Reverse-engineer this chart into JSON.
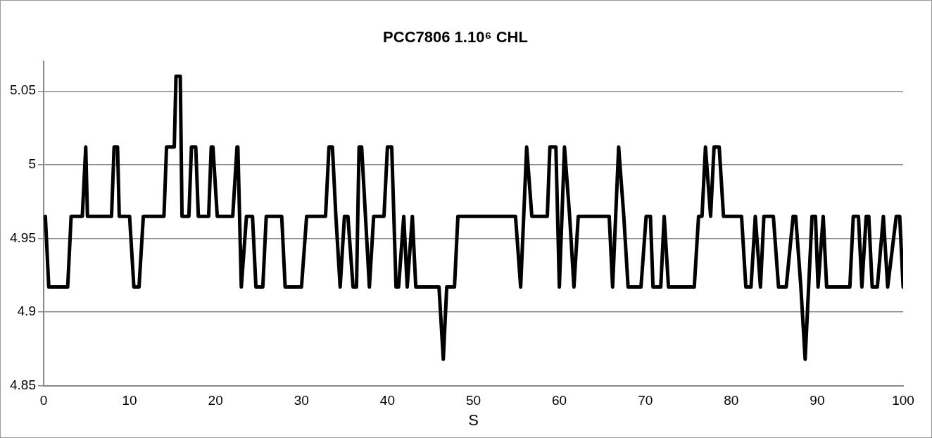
{
  "chart_data": {
    "type": "line",
    "title": "PCC7806 1.10⁶ CHL",
    "xlabel": "S",
    "xlim": [
      0,
      100
    ],
    "xticks": [
      0,
      10,
      20,
      30,
      40,
      50,
      60,
      70,
      80,
      90,
      100
    ],
    "ylim": [
      4.85,
      5.07
    ],
    "yticks": [
      4.85,
      4.9,
      4.95,
      5,
      5.05
    ],
    "grid": "y",
    "legend": false,
    "marker": "none",
    "line_style": "solid",
    "series": [
      {
        "color": "#000000",
        "x": [
          0.2,
          0.6,
          2.8,
          3.2,
          4.5,
          4.9,
          5.1,
          7.9,
          8.2,
          8.6,
          8.8,
          10.0,
          10.5,
          11.1,
          11.6,
          14.0,
          14.3,
          15.2,
          15.4,
          15.9,
          16.1,
          16.9,
          17.2,
          17.7,
          18.0,
          19.2,
          19.5,
          19.7,
          20.2,
          22.0,
          22.5,
          22.6,
          23.0,
          23.6,
          24.3,
          24.7,
          25.5,
          25.9,
          27.7,
          28.1,
          30.0,
          30.6,
          32.8,
          33.2,
          33.6,
          34.0,
          34.5,
          35.0,
          35.4,
          36.0,
          36.4,
          36.7,
          37.0,
          37.9,
          38.4,
          39.6,
          40.0,
          40.5,
          41.0,
          41.3,
          41.9,
          42.3,
          42.9,
          43.3,
          46.0,
          46.5,
          46.9,
          47.8,
          48.2,
          54.9,
          55.5,
          56.2,
          56.8,
          58.6,
          58.9,
          59.6,
          60.0,
          60.6,
          61.2,
          61.7,
          62.2,
          65.8,
          66.2,
          66.9,
          67.5,
          68.0,
          69.5,
          70.1,
          70.6,
          70.9,
          71.8,
          72.2,
          72.7,
          75.7,
          76.2,
          76.6,
          77.0,
          77.6,
          78.0,
          78.6,
          79.1,
          81.2,
          81.7,
          82.3,
          82.8,
          83.4,
          83.8,
          84.9,
          85.5,
          86.4,
          87.2,
          87.5,
          88.1,
          88.6,
          89.4,
          89.8,
          90.1,
          90.7,
          91.1,
          93.8,
          94.2,
          94.8,
          95.2,
          95.7,
          96.0,
          96.4,
          97.0,
          97.7,
          98.2,
          99.2,
          99.6,
          100.0
        ],
        "values": [
          4.965,
          4.917,
          4.917,
          4.965,
          4.965,
          5.012,
          4.965,
          4.965,
          5.012,
          5.012,
          4.965,
          4.965,
          4.917,
          4.917,
          4.965,
          4.965,
          5.012,
          5.012,
          5.06,
          5.06,
          4.965,
          4.965,
          5.012,
          5.012,
          4.965,
          4.965,
          5.012,
          5.012,
          4.965,
          4.965,
          5.012,
          5.012,
          4.917,
          4.965,
          4.965,
          4.917,
          4.917,
          4.965,
          4.965,
          4.917,
          4.917,
          4.965,
          4.965,
          5.012,
          5.012,
          4.965,
          4.917,
          4.965,
          4.965,
          4.917,
          4.917,
          5.012,
          5.012,
          4.917,
          4.965,
          4.965,
          5.012,
          5.012,
          4.917,
          4.917,
          4.965,
          4.917,
          4.965,
          4.917,
          4.917,
          4.868,
          4.917,
          4.917,
          4.965,
          4.965,
          4.917,
          5.012,
          4.965,
          4.965,
          5.012,
          5.012,
          4.917,
          5.012,
          4.965,
          4.917,
          4.965,
          4.965,
          4.917,
          5.012,
          4.965,
          4.917,
          4.917,
          4.965,
          4.965,
          4.917,
          4.917,
          4.965,
          4.917,
          4.917,
          4.965,
          4.965,
          5.012,
          4.965,
          5.012,
          5.012,
          4.965,
          4.965,
          4.917,
          4.917,
          4.965,
          4.917,
          4.965,
          4.965,
          4.917,
          4.917,
          4.965,
          4.965,
          4.917,
          4.868,
          4.965,
          4.965,
          4.917,
          4.965,
          4.917,
          4.917,
          4.965,
          4.965,
          4.917,
          4.965,
          4.965,
          4.917,
          4.917,
          4.965,
          4.917,
          4.965,
          4.965,
          4.917
        ]
      }
    ]
  }
}
